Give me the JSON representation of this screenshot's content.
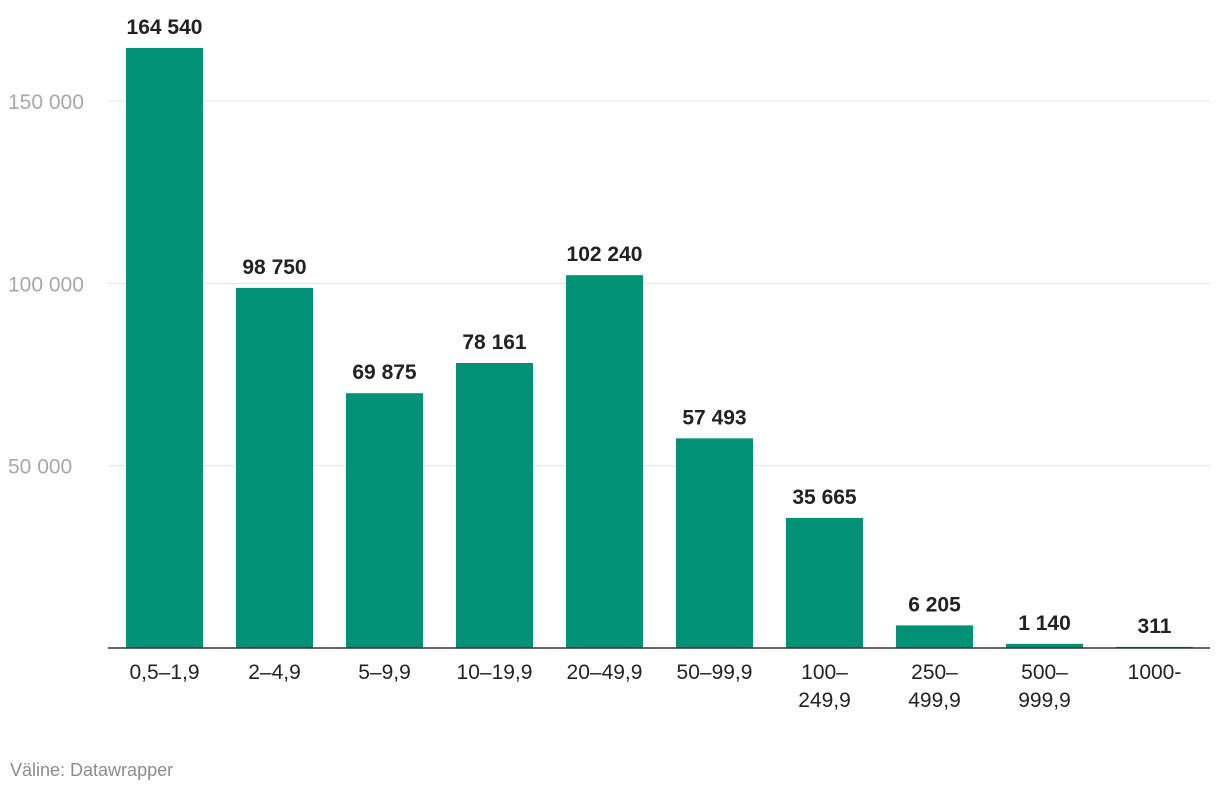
{
  "chart_data": {
    "type": "bar",
    "categories": [
      [
        "0,5–1,9"
      ],
      [
        "2–4,9"
      ],
      [
        "5–9,9"
      ],
      [
        "10–19,9"
      ],
      [
        "20–49,9"
      ],
      [
        "50–99,9"
      ],
      [
        "100–",
        "249,9"
      ],
      [
        "250–",
        "499,9"
      ],
      [
        "500–",
        "999,9"
      ],
      [
        "1000-"
      ]
    ],
    "values": [
      164540,
      98750,
      69875,
      78161,
      102240,
      57493,
      35665,
      6205,
      1140,
      311
    ],
    "value_labels": [
      "164 540",
      "98 750",
      "69 875",
      "78 161",
      "102 240",
      "57 493",
      "35 665",
      "6 205",
      "1 140",
      "311"
    ],
    "yticks": [
      50000,
      100000,
      150000
    ],
    "ytick_labels": [
      "50 000",
      "100 000",
      "150 000"
    ],
    "ylim": [
      0,
      164540
    ],
    "grid": true,
    "bar_color": "#009177"
  },
  "source": "Väline: Datawrapper"
}
